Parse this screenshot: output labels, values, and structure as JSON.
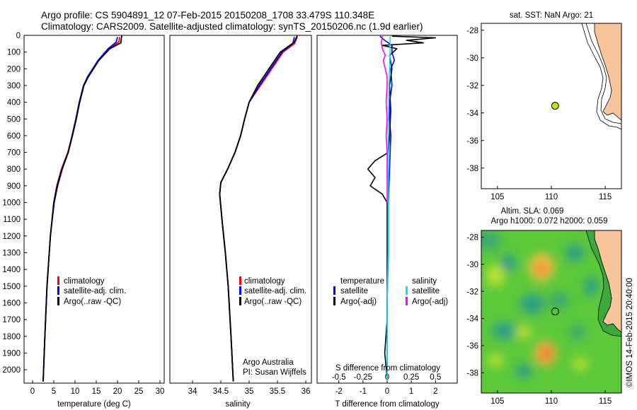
{
  "header": {
    "line1": "Argo profile: CS 5904891_12 07-Feb-2015 20150208_1708 33.479S 110.348E",
    "line2": "Climatology: CARS2009. Satellite-adjusted climatology: synTS_20150206.nc (1.9d earlier)"
  },
  "colors": {
    "climatology": "#ff0000",
    "satellite": "#0000ff",
    "argo": "#000000",
    "sal_satellite": "#00e5ff",
    "sal_argo": "#ff00ff",
    "land": "#f9c49a",
    "marker": "#c8e000"
  },
  "chart_data": [
    {
      "type": "line",
      "id": "temperature",
      "xlabel": "temperature (deg C)",
      "xlim": [
        -2,
        31
      ],
      "ylim": [
        2080,
        0
      ],
      "xticks": [
        0,
        5,
        10,
        15,
        20,
        25,
        30
      ],
      "yticks": [
        0,
        100,
        200,
        300,
        400,
        500,
        600,
        700,
        800,
        900,
        1000,
        1100,
        1200,
        1300,
        1400,
        1500,
        1600,
        1700,
        1800,
        1900,
        2000
      ],
      "legend": [
        "climatology",
        "satellite-adj. clim.",
        "Argo(..raw -QC)"
      ],
      "series": [
        {
          "name": "climatology",
          "depth": [
            10,
            40,
            80,
            150,
            250,
            300,
            400,
            500,
            600,
            700,
            800,
            900,
            1000,
            1200,
            1500,
            1800,
            2000,
            2070
          ],
          "values": [
            20.5,
            20.3,
            18.0,
            15.5,
            13.0,
            12.0,
            11.0,
            10.2,
            9.3,
            8.3,
            6.8,
            5.7,
            5.0,
            4.2,
            3.4,
            2.9,
            2.6,
            2.5
          ]
        },
        {
          "name": "satellite-adj. clim.",
          "depth": [
            10,
            40,
            80,
            150,
            250,
            300,
            400,
            500,
            600,
            700,
            800,
            900,
            1000,
            1200,
            1500,
            1800,
            2000,
            2070
          ],
          "values": [
            20.0,
            19.7,
            17.8,
            15.4,
            12.9,
            12.0,
            11.0,
            10.2,
            9.3,
            8.4,
            7.0,
            5.9,
            5.1,
            4.2,
            3.4,
            2.9,
            2.6,
            2.5
          ]
        },
        {
          "name": "Argo(..raw -QC)",
          "depth": [
            2,
            20,
            45,
            80,
            150,
            250,
            300,
            400,
            500,
            600,
            700,
            800,
            900,
            1000,
            1200,
            1500,
            1800,
            2000,
            2070
          ],
          "values": [
            21.0,
            20.9,
            20.8,
            18.2,
            15.6,
            13.1,
            12.1,
            11.1,
            10.3,
            9.4,
            8.4,
            6.9,
            5.8,
            5.0,
            4.2,
            3.4,
            2.9,
            2.6,
            2.5
          ]
        }
      ]
    },
    {
      "type": "line",
      "id": "salinity",
      "xlabel": "salinity",
      "xlim": [
        33.6,
        36.1
      ],
      "ylim": [
        2080,
        0
      ],
      "xticks": [
        34,
        34.5,
        35,
        35.5,
        36
      ],
      "xticklabels": [
        "34",
        "34.5",
        "35",
        "35.5",
        "36"
      ],
      "legend": [
        "climatology",
        "satellite-adj. clim.",
        "Argo(..raw -QC)"
      ],
      "series": [
        {
          "name": "climatology",
          "depth": [
            10,
            50,
            100,
            200,
            300,
            400,
            500,
            600,
            700,
            800,
            880,
            950,
            1100,
            1300,
            1500,
            1800,
            2070
          ],
          "values": [
            35.85,
            35.8,
            35.6,
            35.4,
            35.2,
            35.0,
            34.92,
            34.85,
            34.75,
            34.62,
            34.5,
            34.48,
            34.52,
            34.58,
            34.63,
            34.68,
            34.72
          ]
        },
        {
          "name": "satellite-adj. clim.",
          "depth": [
            10,
            50,
            100,
            200,
            300,
            400,
            500,
            600,
            700,
            800,
            880,
            950,
            1100,
            1300,
            1500,
            1800,
            2070
          ],
          "values": [
            35.8,
            35.77,
            35.58,
            35.38,
            35.18,
            35.0,
            34.92,
            34.85,
            34.75,
            34.62,
            34.5,
            34.48,
            34.52,
            34.58,
            34.63,
            34.68,
            34.72
          ]
        },
        {
          "name": "Argo(..raw -QC)",
          "depth": [
            2,
            40,
            100,
            200,
            300,
            400,
            500,
            600,
            700,
            800,
            880,
            950,
            1100,
            1300,
            1500,
            1800,
            2070
          ],
          "values": [
            35.85,
            35.8,
            35.55,
            35.35,
            35.15,
            35.0,
            34.92,
            34.85,
            34.75,
            34.62,
            34.5,
            34.48,
            34.52,
            34.58,
            34.63,
            34.68,
            34.72
          ]
        }
      ],
      "annotation": [
        "Argo Australia",
        "PI: Susan Wijffels"
      ]
    },
    {
      "type": "line",
      "id": "difference",
      "xlabel": "T difference from climatology",
      "xlabel_top": "S difference from climatology",
      "xlim": [
        -2.9,
        2.9
      ],
      "ylim": [
        2080,
        0
      ],
      "xticks": [
        -2,
        -1,
        0,
        1,
        2
      ],
      "sxticks": [
        -0.5,
        -0.25,
        0,
        0.25,
        0.5
      ],
      "sxticklabels": [
        "-0.5",
        "-0.25",
        "0",
        "0.25",
        "0.5"
      ],
      "legend_temperature": {
        "title": "temperature",
        "items": [
          "satellite",
          "Argo(-adj)"
        ]
      },
      "legend_salinity": {
        "title": "salinity",
        "items": [
          "satellite",
          "Argo(-adj)"
        ]
      },
      "series": [
        {
          "name": "T satellite",
          "depth": [
            5,
            30,
            60,
            100,
            150,
            200,
            300,
            400,
            500,
            600,
            800,
            1000,
            1300,
            1600,
            2050
          ],
          "values": [
            -0.3,
            -0.1,
            0.2,
            0.2,
            0.3,
            0.15,
            0.2,
            0.1,
            0.1,
            0.15,
            0.1,
            0.05,
            0.05,
            0.0,
            0.0
          ]
        },
        {
          "name": "T Argo(-adj)",
          "depth": [
            5,
            15,
            30,
            45,
            60,
            80,
            120,
            200,
            300,
            450,
            600,
            700,
            750,
            800,
            850,
            900,
            950,
            1000,
            1100,
            1300,
            1500,
            1700,
            1900,
            2050
          ],
          "values": [
            0.2,
            2.0,
            0.8,
            1.5,
            -0.2,
            0.4,
            0.1,
            0.2,
            0.1,
            0.15,
            0.1,
            0.05,
            -0.5,
            -0.8,
            -0.5,
            -0.7,
            -0.2,
            0.0,
            0.0,
            0.0,
            0.0,
            0.0,
            -0.1,
            0.0
          ]
        },
        {
          "name": "S satellite",
          "depth": [
            5,
            100,
            300,
            600,
            800,
            1000,
            1300,
            1600,
            2050
          ],
          "values": [
            0.03,
            0.03,
            0.02,
            0.01,
            0.01,
            0.01,
            0.01,
            0.0,
            0.0
          ]
        },
        {
          "name": "S Argo(-adj)",
          "depth": [
            5,
            40,
            80,
            120,
            150,
            200,
            250,
            300,
            400,
            500,
            600,
            700,
            800,
            900,
            1000
          ],
          "values": [
            -0.05,
            -0.06,
            -0.05,
            -0.02,
            -0.04,
            -0.02,
            0.0,
            0.0,
            -0.01,
            0.0,
            -0.01,
            0.0,
            0.0,
            0.0,
            0.0
          ]
        }
      ]
    },
    {
      "type": "scatter",
      "id": "sst_map",
      "title": "sat. SST: NaN Argo: 21",
      "xlim": [
        103.5,
        116.5
      ],
      "ylim": [
        -39.5,
        -27.5
      ],
      "xticks": [
        105,
        110,
        115
      ],
      "yticks": [
        -28,
        -30,
        -32,
        -34,
        -36,
        -38
      ],
      "points": [
        {
          "x": 110.35,
          "y": -33.48
        }
      ]
    },
    {
      "type": "heatmap",
      "id": "sla_map",
      "title1": "Altim. SLA: 0.069",
      "title2": "Argo h1000: 0.072 h2000: 0.059",
      "xlim": [
        103.5,
        116.5
      ],
      "ylim": [
        -39.5,
        -27.5
      ],
      "xticks": [
        105,
        110,
        115
      ],
      "yticks": [
        -28,
        -30,
        -32,
        -34,
        -36,
        -38
      ],
      "points": [
        {
          "x": 110.35,
          "y": -33.48
        }
      ]
    }
  ],
  "credit": "©IMOS 14-Feb-2015 20:40:00"
}
